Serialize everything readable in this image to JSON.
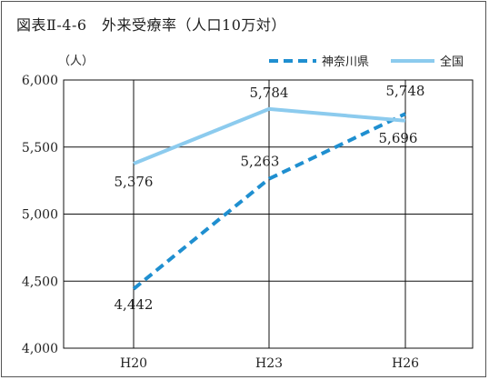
{
  "title": "図表Ⅱ-4-6　外来受療率（人口10万対）",
  "unit_label": "（人）",
  "colors": {
    "kanagawa": "#1f8fd0",
    "national": "#8ccbee",
    "grid": "#111111"
  },
  "chart_data": {
    "type": "line",
    "title": "図表Ⅱ-4-6　外来受療率（人口10万対）",
    "ylabel": "（人）",
    "categories": [
      "H20",
      "H23",
      "H26"
    ],
    "ylim": [
      4000,
      6000
    ],
    "yticks": [
      4000,
      4500,
      5000,
      5500,
      6000
    ],
    "ytick_labels": [
      "4,000",
      "4,500",
      "5,000",
      "5,500",
      "6,000"
    ],
    "grid": true,
    "legend_position": "top-right",
    "series": [
      {
        "name": "神奈川県",
        "style": "dashed",
        "values": [
          4442,
          5263,
          5748
        ],
        "labels": [
          "4,442",
          "5,263",
          "5,748"
        ]
      },
      {
        "name": "全国",
        "style": "solid",
        "values": [
          5376,
          5784,
          5696
        ],
        "labels": [
          "5,376",
          "5,784",
          "5,696"
        ]
      }
    ]
  }
}
